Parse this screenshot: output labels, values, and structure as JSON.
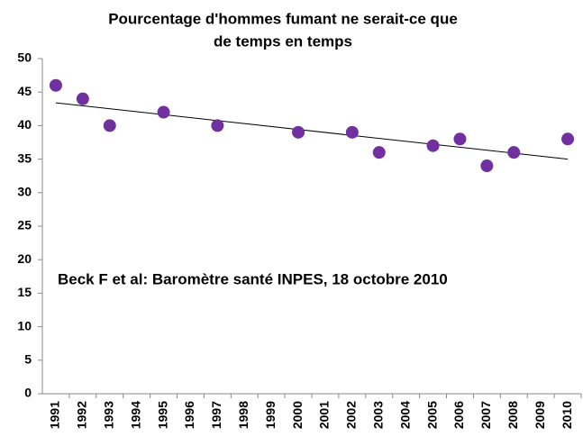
{
  "chart_data": {
    "type": "scatter",
    "title": [
      "Pourcentage d'hommes fumant ne serait-ce que",
      "de temps en temps"
    ],
    "annotation": "Beck F et al: Baromètre santé INPES, 18 octobre 2010",
    "categories": [
      "1991",
      "1992",
      "1993",
      "1994",
      "1995",
      "1996",
      "1997",
      "1998",
      "1999",
      "2000",
      "2001",
      "2002",
      "2003",
      "2004",
      "2005",
      "2006",
      "2007",
      "2008",
      "2009",
      "2010"
    ],
    "values": [
      46,
      44,
      40,
      null,
      42,
      null,
      40,
      null,
      null,
      39,
      null,
      39,
      36,
      null,
      37,
      38,
      34,
      36,
      null,
      38
    ],
    "color": "#7030a0",
    "trendline": {
      "values": [
        43.4,
        35
      ],
      "color": "#000000"
    },
    "ylim": [
      0,
      50
    ],
    "yticks": [
      0,
      5,
      10,
      15,
      20,
      25,
      30,
      35,
      40,
      45,
      50
    ],
    "grid": false
  }
}
